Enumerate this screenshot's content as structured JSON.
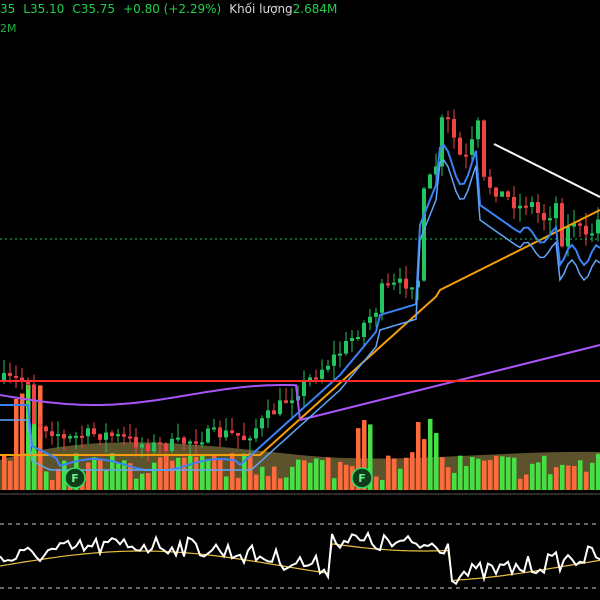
{
  "legend": {
    "open_tail": "35",
    "low": "L35.10",
    "close": "C35.75",
    "change": "+0.80 (+2.29%)",
    "volume_label": "Khối lượng",
    "volume_value": "2.684M",
    "sub_label": "2M"
  },
  "colors": {
    "up": "#22c55e",
    "down": "#ef4444",
    "ma_fast": "#3b82f6",
    "ma_mid": "#60a5fa",
    "ma_orange": "#f59e0b",
    "ma_purple": "#a855f7",
    "support_line": "#ff2a2a",
    "price_line": "#22c55e",
    "trend_line": "#ffffff",
    "oscillator": "#ffffff",
    "oscillator_signal": "#e8c040"
  },
  "markers": [
    {
      "icon": "F",
      "name": "financial-report-icon"
    },
    {
      "icon": "F",
      "name": "financial-report-icon"
    }
  ]
}
